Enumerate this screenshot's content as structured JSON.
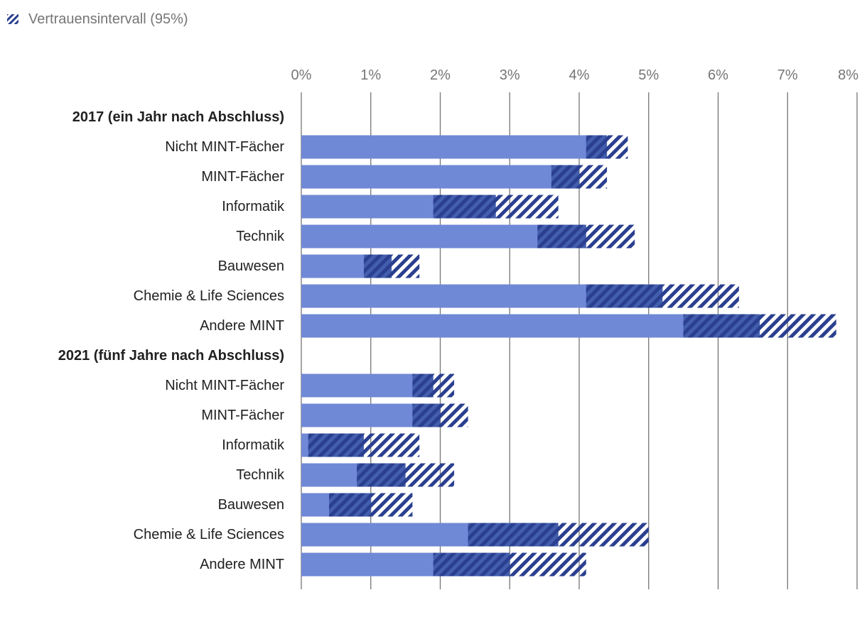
{
  "legend": {
    "label": "Vertrauensintervall (95%)"
  },
  "colors": {
    "bar": "#7089d6",
    "ci_dark": "#1f3a8c",
    "ci_fill": "#2a3f8f",
    "grid": "#757575"
  },
  "chart_data": {
    "type": "bar",
    "orientation": "horizontal",
    "title": "",
    "xlabel": "",
    "ylabel": "",
    "xlim": [
      0,
      8
    ],
    "xticks": [
      0,
      1,
      2,
      3,
      4,
      5,
      6,
      7,
      8
    ],
    "xtick_labels": [
      "0%",
      "1%",
      "2%",
      "3%",
      "4%",
      "5%",
      "6%",
      "7%",
      "8%"
    ],
    "grid": true,
    "legend_position": "top-left",
    "groups": [
      {
        "label": "2017 (ein Jahr nach Abschluss)",
        "categories": [
          "Nicht MINT-Fächer",
          "MINT-Fächer",
          "Informatik",
          "Technik",
          "Bauwesen",
          "Chemie & Life Sciences",
          "Andere MINT"
        ],
        "values": [
          4.4,
          4.0,
          2.8,
          4.1,
          1.3,
          5.2,
          6.6
        ],
        "ci_low": [
          4.1,
          3.6,
          1.9,
          3.4,
          0.9,
          4.1,
          5.5
        ],
        "ci_high": [
          4.7,
          4.4,
          3.7,
          4.8,
          1.7,
          6.3,
          7.7
        ]
      },
      {
        "label": "2021 (fünf Jahre nach Abschluss)",
        "categories": [
          "Nicht MINT-Fächer",
          "MINT-Fächer",
          "Informatik",
          "Technik",
          "Bauwesen",
          "Chemie & Life Sciences",
          "Andere MINT"
        ],
        "values": [
          1.9,
          2.0,
          0.9,
          1.5,
          1.0,
          3.7,
          3.0
        ],
        "ci_low": [
          1.6,
          1.6,
          0.1,
          0.8,
          0.4,
          2.4,
          1.9
        ],
        "ci_high": [
          2.2,
          2.4,
          1.7,
          2.2,
          1.6,
          5.0,
          4.1
        ]
      }
    ]
  }
}
